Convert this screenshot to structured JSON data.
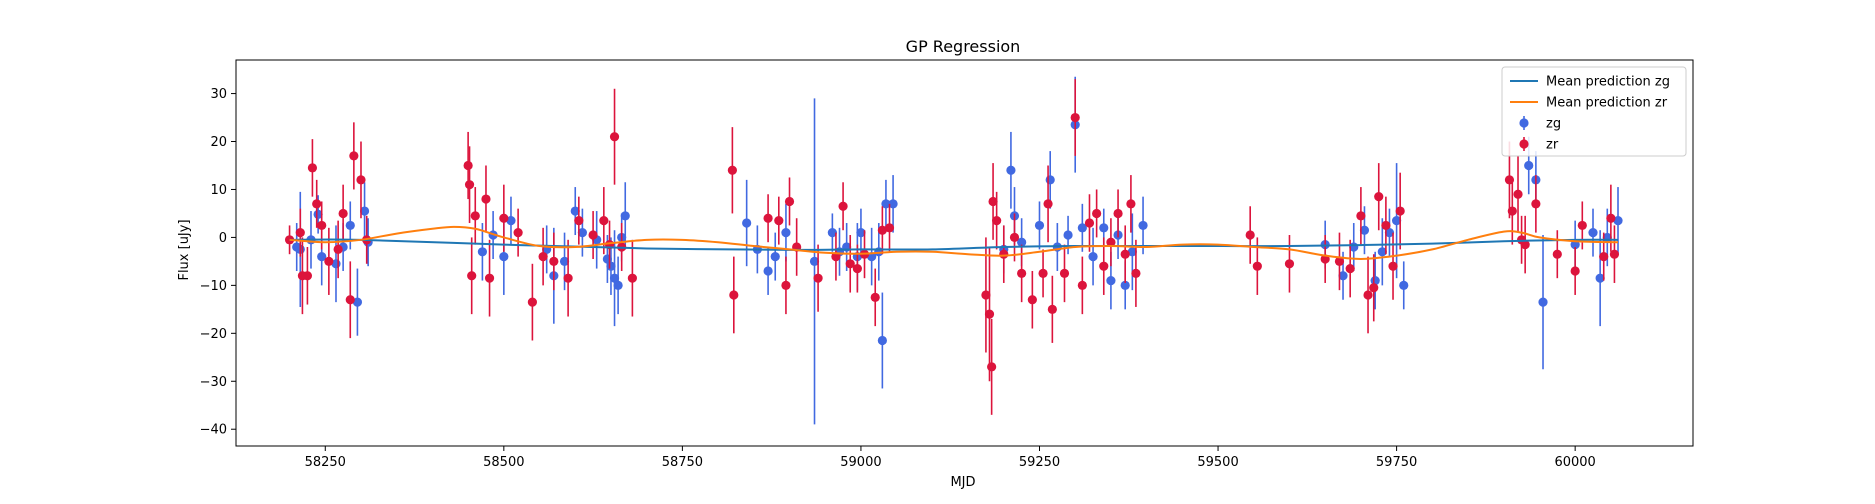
{
  "chart_data": {
    "type": "scatter",
    "title": "GP Regression",
    "xlabel": "MJD",
    "ylabel": "Flux [uJy]",
    "xlim": [
      58125,
      60165
    ],
    "ylim": [
      -43.5,
      37
    ],
    "xticks": [
      58250,
      58500,
      58750,
      59000,
      59250,
      59500,
      59750,
      60000
    ],
    "yticks": [
      -40,
      -30,
      -20,
      -10,
      0,
      10,
      20,
      30
    ],
    "legend_position": "top-right",
    "legend": [
      "Mean prediction zg",
      "Mean prediction zr",
      "zg",
      "zr"
    ],
    "colors": {
      "zg_line": "#1f77b4",
      "zr_line": "#ff7f0e",
      "zg_points": "#4169e1",
      "zr_points": "#dc143c"
    },
    "series": [
      {
        "name": "Mean prediction zg",
        "kind": "line",
        "x": [
          58200,
          58300,
          58500,
          58700,
          58900,
          59000,
          59100,
          59200,
          59300,
          59400,
          59500,
          59600,
          59700,
          59800,
          59900,
          60000,
          60060
        ],
        "y": [
          -0.5,
          -0.5,
          -1.5,
          -2.3,
          -2.6,
          -2.5,
          -2.5,
          -2.0,
          -1.8,
          -1.8,
          -1.8,
          -1.8,
          -1.6,
          -1.3,
          -0.8,
          -0.5,
          -0.5
        ]
      },
      {
        "name": "Mean prediction zr",
        "kind": "line",
        "x": [
          58200,
          58250,
          58300,
          58350,
          58400,
          58430,
          58460,
          58500,
          58550,
          58600,
          58650,
          58700,
          58750,
          58800,
          58850,
          58900,
          58950,
          59000,
          59050,
          59100,
          59150,
          59200,
          59250,
          59300,
          59350,
          59400,
          59450,
          59500,
          59550,
          59600,
          59650,
          59700,
          59750,
          59800,
          59850,
          59900,
          59925,
          59950,
          60000,
          60060
        ],
        "y": [
          -0.5,
          -1.0,
          -0.5,
          0.8,
          1.8,
          2.2,
          1.8,
          0.0,
          -1.8,
          -2.0,
          -1.2,
          -0.5,
          -0.5,
          -1.0,
          -1.8,
          -2.5,
          -3.2,
          -3.4,
          -3.0,
          -3.0,
          -3.5,
          -3.8,
          -3.0,
          -2.0,
          -1.8,
          -2.0,
          -1.5,
          -1.5,
          -2.0,
          -2.5,
          -3.8,
          -4.5,
          -3.8,
          -2.5,
          -0.5,
          1.2,
          1.0,
          0.0,
          -0.8,
          -1.0
        ]
      },
      {
        "name": "zg",
        "kind": "errorbar",
        "points": [
          [
            58210,
            -2.0,
            5
          ],
          [
            58215,
            -2.5,
            12
          ],
          [
            58230,
            -0.5,
            6
          ],
          [
            58240,
            4.8,
            4
          ],
          [
            58245,
            -4.0,
            6
          ],
          [
            58265,
            -5.5,
            8
          ],
          [
            58275,
            -2.0,
            5
          ],
          [
            58285,
            2.5,
            5
          ],
          [
            58295,
            -13.5,
            7
          ],
          [
            58305,
            5.5,
            6
          ],
          [
            58310,
            -1.0,
            5
          ],
          [
            58470,
            -3.0,
            6
          ],
          [
            58485,
            0.5,
            5
          ],
          [
            58500,
            -4.0,
            8
          ],
          [
            58510,
            3.5,
            5
          ],
          [
            58560,
            -2.5,
            5
          ],
          [
            58570,
            -8.0,
            10
          ],
          [
            58585,
            -5.0,
            6
          ],
          [
            58600,
            5.5,
            5
          ],
          [
            58610,
            1.0,
            5
          ],
          [
            58630,
            -0.5,
            6
          ],
          [
            58645,
            -4.5,
            5
          ],
          [
            58650,
            -6.0,
            6
          ],
          [
            58655,
            -8.5,
            10
          ],
          [
            58660,
            -10.0,
            6
          ],
          [
            58665,
            0.0,
            5
          ],
          [
            58670,
            4.5,
            7
          ],
          [
            58840,
            3.0,
            9
          ],
          [
            58855,
            -2.5,
            5
          ],
          [
            58870,
            -7.0,
            5
          ],
          [
            58880,
            -4.0,
            5
          ],
          [
            58895,
            1.0,
            6
          ],
          [
            58935,
            -5.0,
            34
          ],
          [
            58960,
            1.0,
            4
          ],
          [
            58970,
            -3.0,
            5
          ],
          [
            58980,
            -2.0,
            5
          ],
          [
            58995,
            -4.0,
            7
          ],
          [
            59000,
            1.0,
            5
          ],
          [
            59015,
            -4.0,
            6
          ],
          [
            59025,
            -3.0,
            6
          ],
          [
            59030,
            -21.5,
            10
          ],
          [
            59035,
            7.0,
            5
          ],
          [
            59045,
            7.0,
            6
          ],
          [
            59200,
            -2.5,
            5
          ],
          [
            59210,
            14.0,
            8
          ],
          [
            59215,
            4.5,
            6
          ],
          [
            59225,
            -1.0,
            5
          ],
          [
            59250,
            2.5,
            5
          ],
          [
            59265,
            12.0,
            6
          ],
          [
            59275,
            -2.0,
            5
          ],
          [
            59290,
            0.5,
            4
          ],
          [
            59300,
            23.5,
            10
          ],
          [
            59310,
            2.0,
            5
          ],
          [
            59325,
            -4.0,
            6
          ],
          [
            59340,
            2.0,
            4
          ],
          [
            59350,
            -9.0,
            6
          ],
          [
            59360,
            0.5,
            5
          ],
          [
            59370,
            -10.0,
            5
          ],
          [
            59380,
            -3.0,
            8
          ],
          [
            59395,
            2.5,
            6
          ],
          [
            59650,
            -1.5,
            5
          ],
          [
            59675,
            -8.0,
            5
          ],
          [
            59690,
            -2.0,
            5
          ],
          [
            59705,
            1.5,
            5
          ],
          [
            59720,
            -9.0,
            6
          ],
          [
            59730,
            -3.0,
            7
          ],
          [
            59740,
            1.0,
            5
          ],
          [
            59750,
            3.5,
            12
          ],
          [
            59760,
            -10.0,
            5
          ],
          [
            59935,
            15.0,
            6
          ],
          [
            59945,
            12.0,
            6
          ],
          [
            59955,
            -13.5,
            14
          ],
          [
            60000,
            -1.5,
            5
          ],
          [
            60025,
            1.0,
            5
          ],
          [
            60035,
            -8.5,
            10
          ],
          [
            60045,
            0.0,
            6
          ],
          [
            60060,
            3.5,
            7
          ]
        ]
      },
      {
        "name": "zr",
        "kind": "errorbar",
        "points": [
          [
            58200,
            -0.5,
            3
          ],
          [
            58215,
            1.0,
            5
          ],
          [
            58218,
            -8.0,
            8
          ],
          [
            58225,
            -8.0,
            6
          ],
          [
            58232,
            14.5,
            6
          ],
          [
            58238,
            7.0,
            5
          ],
          [
            58245,
            2.5,
            5
          ],
          [
            58255,
            -5.0,
            7
          ],
          [
            58268,
            -2.5,
            6
          ],
          [
            58275,
            5.0,
            6
          ],
          [
            58285,
            -13.0,
            8
          ],
          [
            58290,
            17.0,
            7
          ],
          [
            58300,
            12.0,
            8
          ],
          [
            58308,
            -0.5,
            5
          ],
          [
            58450,
            15.0,
            7
          ],
          [
            58452,
            11.0,
            8
          ],
          [
            58455,
            -8.0,
            8
          ],
          [
            58460,
            4.5,
            6
          ],
          [
            58475,
            8.0,
            7
          ],
          [
            58480,
            -8.5,
            8
          ],
          [
            58500,
            4.0,
            7
          ],
          [
            58520,
            1.0,
            5
          ],
          [
            58540,
            -13.5,
            8
          ],
          [
            58555,
            -4.0,
            6
          ],
          [
            58570,
            -5.0,
            6
          ],
          [
            58590,
            -8.5,
            8
          ],
          [
            58605,
            3.5,
            5
          ],
          [
            58625,
            0.5,
            5
          ],
          [
            58640,
            3.5,
            7
          ],
          [
            58648,
            -1.5,
            5
          ],
          [
            58655,
            21.0,
            10
          ],
          [
            58665,
            -2.0,
            5
          ],
          [
            58680,
            -8.5,
            8
          ],
          [
            58820,
            14.0,
            9
          ],
          [
            58822,
            -12.0,
            8
          ],
          [
            58870,
            4.0,
            5
          ],
          [
            58885,
            3.5,
            5
          ],
          [
            58895,
            -10.0,
            6
          ],
          [
            58900,
            7.5,
            5
          ],
          [
            58910,
            -2.0,
            6
          ],
          [
            58940,
            -8.5,
            7
          ],
          [
            58965,
            -4.0,
            5
          ],
          [
            58975,
            6.5,
            5
          ],
          [
            58985,
            -5.5,
            6
          ],
          [
            58995,
            -6.5,
            5
          ],
          [
            59005,
            -3.5,
            5
          ],
          [
            59020,
            -12.5,
            6
          ],
          [
            59030,
            1.5,
            5
          ],
          [
            59040,
            2.0,
            5
          ],
          [
            59175,
            -12.0,
            12
          ],
          [
            59180,
            -16.0,
            14
          ],
          [
            59183,
            -27.0,
            10
          ],
          [
            59185,
            7.5,
            8
          ],
          [
            59190,
            3.5,
            6
          ],
          [
            59200,
            -3.5,
            6
          ],
          [
            59215,
            0.0,
            5
          ],
          [
            59225,
            -7.5,
            6
          ],
          [
            59240,
            -13.0,
            6
          ],
          [
            59255,
            -7.5,
            5
          ],
          [
            59262,
            7.0,
            8
          ],
          [
            59268,
            -15.0,
            7
          ],
          [
            59285,
            -7.5,
            6
          ],
          [
            59300,
            25.0,
            8
          ],
          [
            59310,
            -10.0,
            6
          ],
          [
            59320,
            3.0,
            6
          ],
          [
            59330,
            5.0,
            5
          ],
          [
            59340,
            -6.0,
            6
          ],
          [
            59350,
            -1.0,
            5
          ],
          [
            59360,
            5.0,
            5
          ],
          [
            59370,
            -3.5,
            6
          ],
          [
            59378,
            7.0,
            6
          ],
          [
            59385,
            -7.5,
            7
          ],
          [
            59545,
            0.5,
            6
          ],
          [
            59555,
            -6.0,
            6
          ],
          [
            59600,
            -5.5,
            6
          ],
          [
            59650,
            -4.5,
            5
          ],
          [
            59670,
            -5.0,
            6
          ],
          [
            59685,
            -6.5,
            6
          ],
          [
            59700,
            4.5,
            6
          ],
          [
            59710,
            -12.0,
            8
          ],
          [
            59718,
            -10.5,
            7
          ],
          [
            59725,
            8.5,
            7
          ],
          [
            59735,
            2.5,
            6
          ],
          [
            59745,
            -6.0,
            7
          ],
          [
            59755,
            5.5,
            8
          ],
          [
            59908,
            12.0,
            8
          ],
          [
            59912,
            5.5,
            7
          ],
          [
            59920,
            9.0,
            8
          ],
          [
            59925,
            -0.5,
            5
          ],
          [
            59930,
            -1.5,
            6
          ],
          [
            59945,
            7.0,
            6
          ],
          [
            59975,
            -3.5,
            5
          ],
          [
            60000,
            -7.0,
            5
          ],
          [
            60010,
            2.5,
            5
          ],
          [
            60040,
            -4.0,
            5
          ],
          [
            60050,
            4.0,
            7
          ],
          [
            60055,
            -3.5,
            6
          ]
        ]
      }
    ]
  }
}
